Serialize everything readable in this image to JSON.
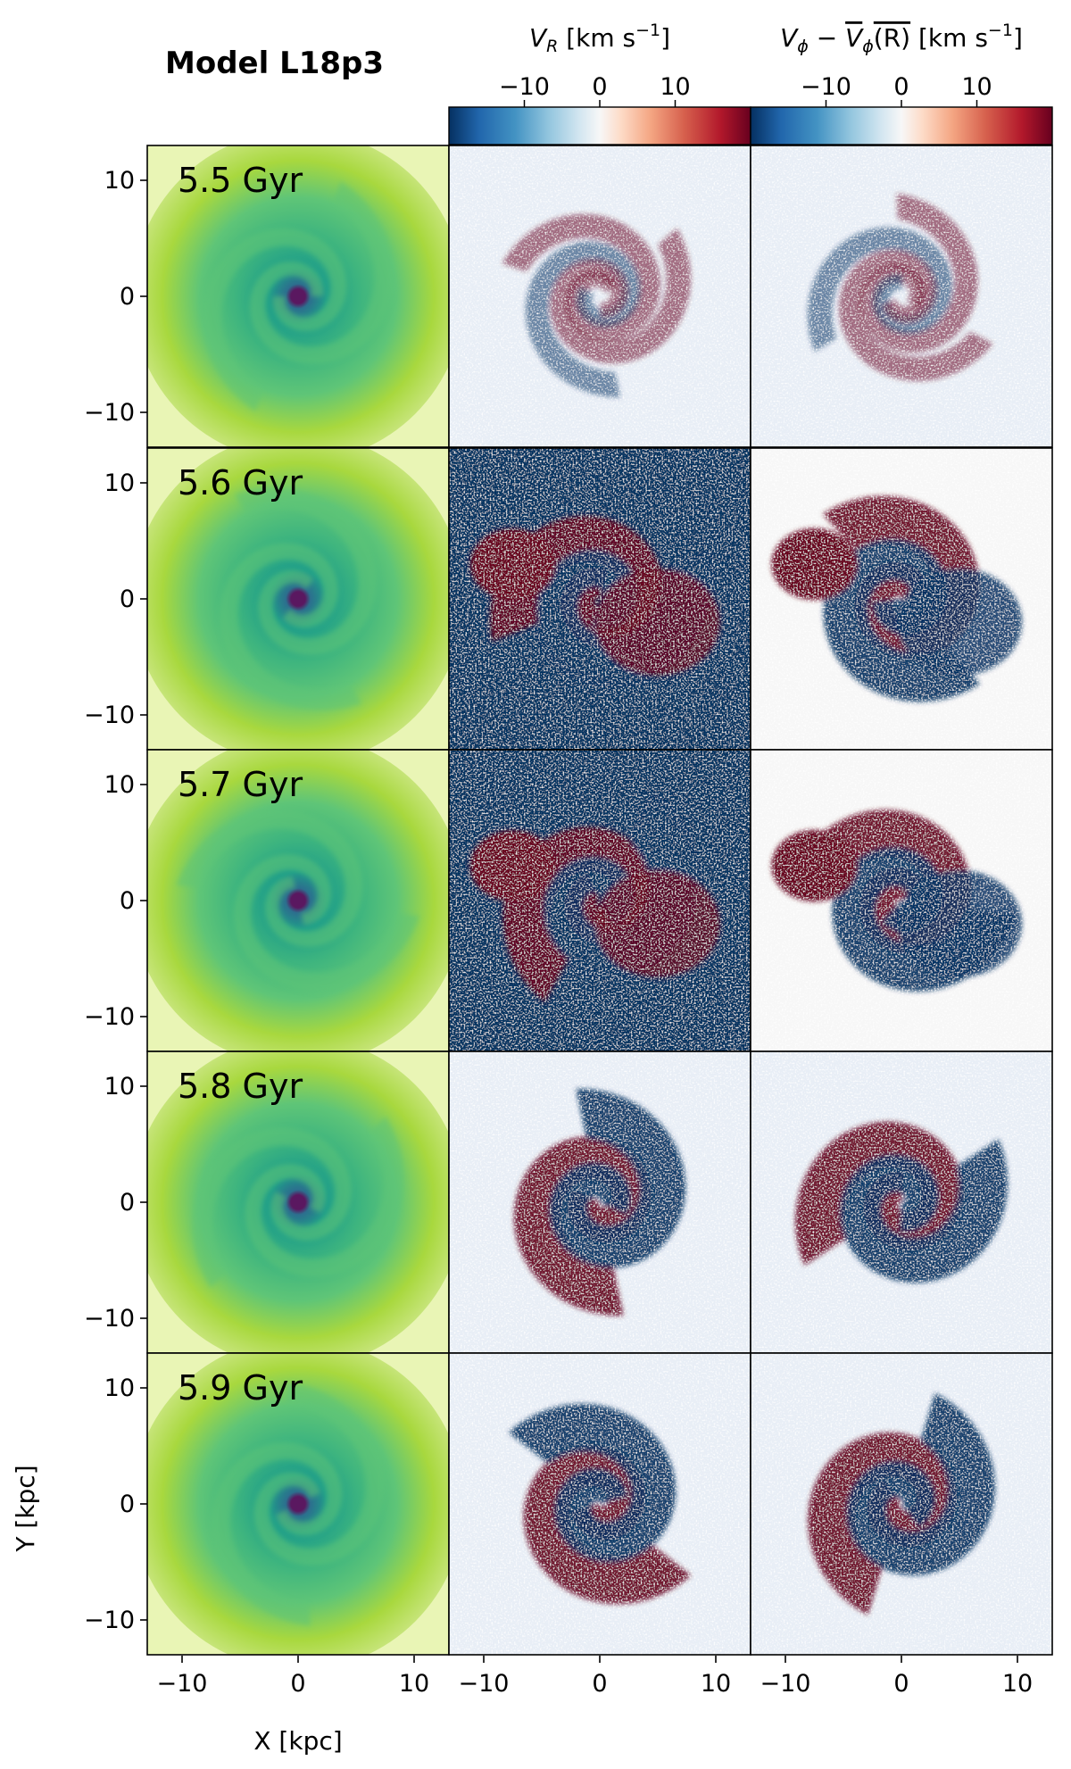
{
  "figure_title": "Model L18p3",
  "chart_data": {
    "type": "heatmap",
    "title": "Model L18p3",
    "layout": "grid",
    "rows": 5,
    "columns": [
      "surface-density",
      "V_R",
      "V_phi_residual"
    ],
    "xlabel": "X [kpc]",
    "ylabel": "Y [kpc]",
    "xlim": [
      -13,
      13
    ],
    "ylim": [
      -13,
      13
    ],
    "x_ticks": [
      -10,
      0,
      10
    ],
    "y_ticks": [
      -10,
      0,
      10
    ],
    "x_tick_labels": [
      "−10",
      "0",
      "10"
    ],
    "y_tick_labels": [
      "−10",
      "0",
      "10"
    ],
    "times": [
      "5.5 Gyr",
      "5.6 Gyr",
      "5.7 Gyr",
      "5.8 Gyr",
      "5.9 Gyr"
    ],
    "time_values_gyr": [
      5.5,
      5.6,
      5.7,
      5.8,
      5.9
    ],
    "colorbars": [
      {
        "name": "vr",
        "label_main": "V",
        "label_sub": "R",
        "label_unit": " [km s",
        "label_exp": "−1",
        "label_close": "]",
        "range": [
          -20,
          20
        ],
        "ticks": [
          -10,
          0,
          10
        ],
        "tick_labels": [
          "−10",
          "0",
          "10"
        ],
        "colormap": "RdBu_r"
      },
      {
        "name": "vphi",
        "label_main": "V",
        "label_sub": "ϕ",
        "label_minus": " − ",
        "label_over": "V",
        "label_over_sub": "ϕ",
        "label_over_arg": "(R)",
        "label_unit": " [km s",
        "label_exp": "−1",
        "label_close": "]",
        "range": [
          -20,
          20
        ],
        "ticks": [
          -10,
          0,
          10
        ],
        "tick_labels": [
          "−10",
          "0",
          "10"
        ],
        "colormap": "RdBu_r"
      }
    ],
    "density_colormap": "viridis_r",
    "colors": {
      "density_outer": "#e9f5b5",
      "density_mid": "#a8d83e",
      "density_arm": "#5fc577",
      "density_inner": "#1f9e89",
      "density_core": "#5a1860",
      "negative": "#053061",
      "positive": "#67001f",
      "neutral": "#f7f7f7"
    }
  }
}
